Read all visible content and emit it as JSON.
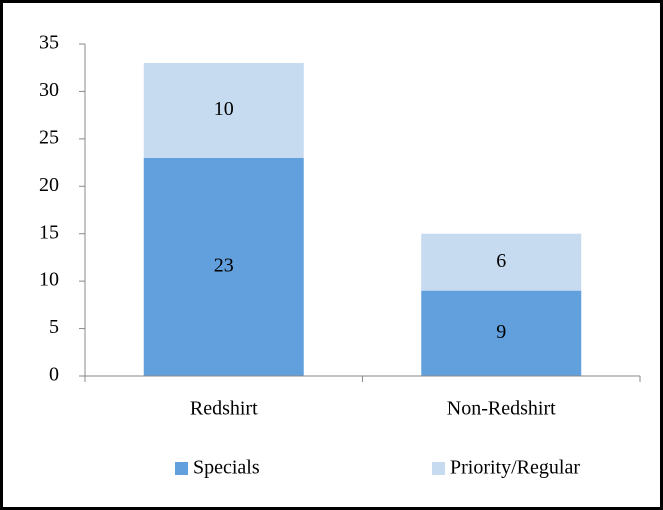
{
  "chart_data": {
    "type": "stacked_bar",
    "categories": [
      "Redshirt",
      "Non-Redshirt"
    ],
    "series": [
      {
        "name": "Specials",
        "color": "#62a0dd",
        "values": [
          23,
          9
        ]
      },
      {
        "name": "Priority/Regular",
        "color": "#c6daf0",
        "values": [
          10,
          6
        ]
      }
    ],
    "ylim": [
      0,
      35
    ],
    "yticks": [
      0,
      5,
      10,
      15,
      20,
      25,
      30,
      35
    ],
    "grid": false,
    "legend": "bottom"
  }
}
